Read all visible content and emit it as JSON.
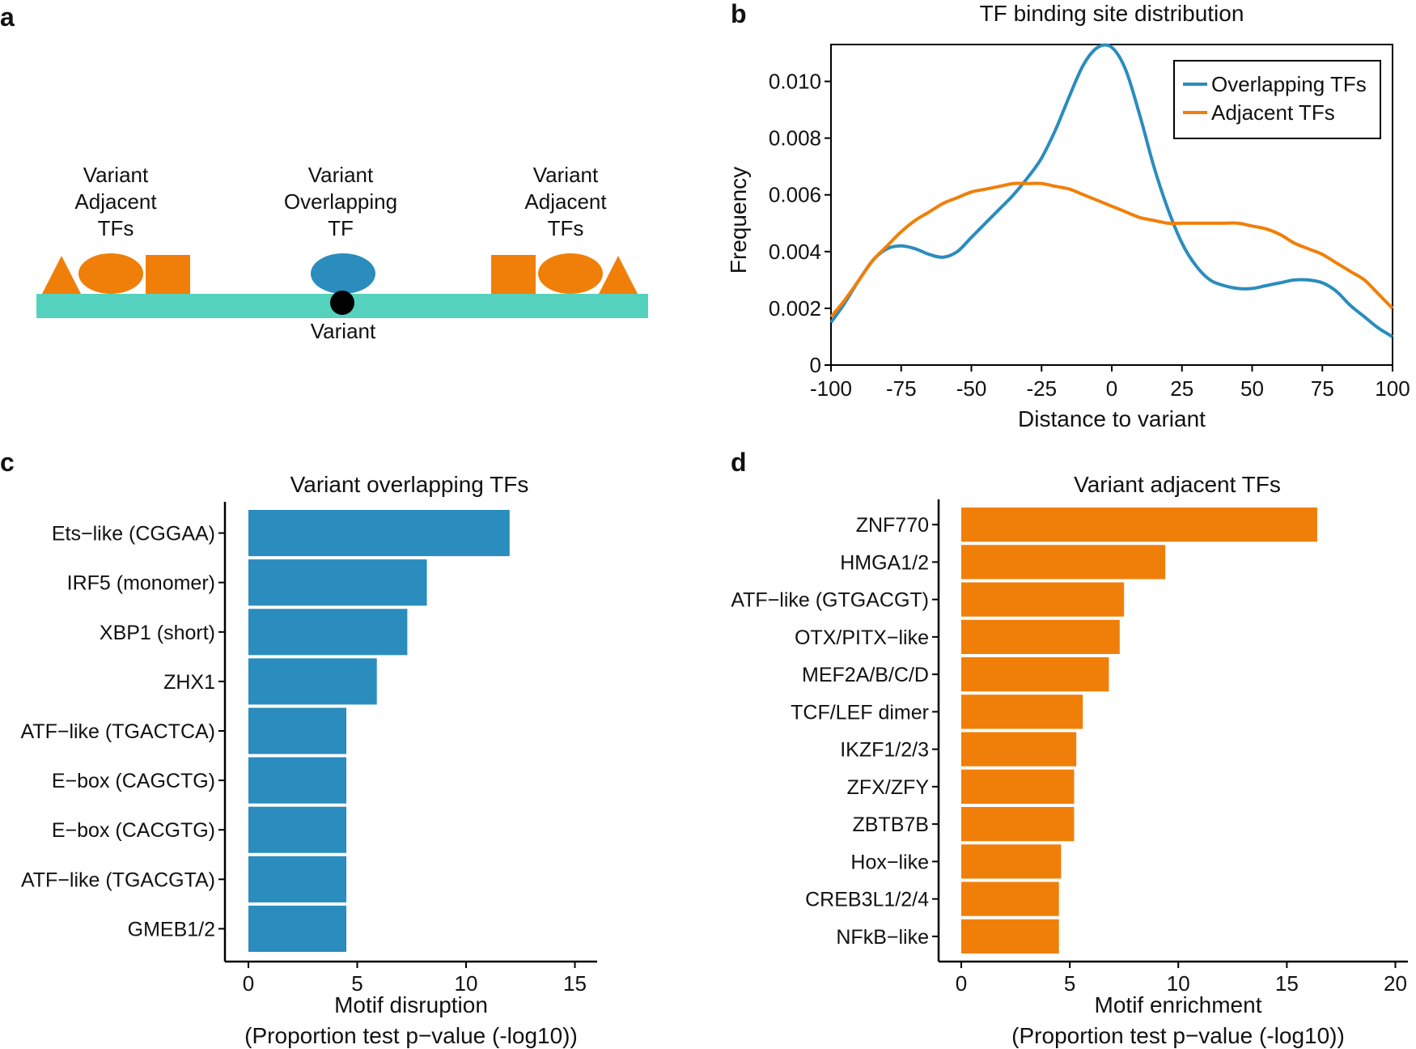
{
  "panels": {
    "a": {
      "letter": "a",
      "left_group": {
        "line1": "Variant",
        "line2": "Adjacent",
        "line3": "TFs"
      },
      "center_group": {
        "line1": "Variant",
        "line2": "Overlapping",
        "line3": "TF"
      },
      "right_group": {
        "line1": "Variant",
        "line2": "Adjacent",
        "line3": "TFs"
      },
      "variant_label": "Variant"
    },
    "b": {
      "letter": "b"
    },
    "c": {
      "letter": "c"
    },
    "d": {
      "letter": "d"
    }
  },
  "colors": {
    "overlapping": "#2b8cbe",
    "adjacent": "#f07f09",
    "dna": "#55d2bd",
    "variant": "#000000",
    "axis": "#000000"
  },
  "chart_data": [
    {
      "id": "b",
      "type": "line",
      "title": "TF binding site distribution",
      "xlabel": "Distance to variant",
      "ylabel": "Frequency",
      "xlim": [
        -100,
        100
      ],
      "ylim": [
        0,
        0.0113
      ],
      "xticks": [
        -100,
        -75,
        -50,
        -25,
        0,
        25,
        50,
        75,
        100
      ],
      "yticks": [
        0,
        0.002,
        0.004,
        0.006,
        0.008,
        0.01
      ],
      "ytick_labels": [
        "0",
        "0.002",
        "0.004",
        "0.006",
        "0.008",
        "0.010"
      ],
      "legend_position": "top-right",
      "series": [
        {
          "name": "Overlapping TFs",
          "color": "#2b8cbe",
          "x": [
            -100,
            -95,
            -90,
            -85,
            -80,
            -75,
            -70,
            -65,
            -60,
            -55,
            -50,
            -45,
            -40,
            -35,
            -30,
            -25,
            -20,
            -15,
            -10,
            -5,
            0,
            5,
            10,
            15,
            20,
            25,
            30,
            35,
            40,
            45,
            50,
            55,
            60,
            65,
            70,
            75,
            80,
            85,
            90,
            95,
            100
          ],
          "y": [
            0.0015,
            0.0022,
            0.003,
            0.0037,
            0.0041,
            0.0042,
            0.0041,
            0.0039,
            0.0038,
            0.004,
            0.0045,
            0.005,
            0.0055,
            0.006,
            0.0066,
            0.0073,
            0.0083,
            0.0095,
            0.0106,
            0.0112,
            0.0112,
            0.0104,
            0.0088,
            0.007,
            0.0055,
            0.0043,
            0.0035,
            0.003,
            0.0028,
            0.0027,
            0.0027,
            0.0028,
            0.0029,
            0.003,
            0.003,
            0.0029,
            0.0026,
            0.0021,
            0.0017,
            0.0013,
            0.001
          ]
        },
        {
          "name": "Adjacent TFs",
          "color": "#f07f09",
          "x": [
            -100,
            -95,
            -90,
            -85,
            -80,
            -75,
            -70,
            -65,
            -60,
            -55,
            -50,
            -45,
            -40,
            -35,
            -30,
            -25,
            -20,
            -15,
            -10,
            -5,
            0,
            5,
            10,
            15,
            20,
            25,
            30,
            35,
            40,
            45,
            50,
            55,
            60,
            65,
            70,
            75,
            80,
            85,
            90,
            95,
            100
          ],
          "y": [
            0.0017,
            0.0023,
            0.003,
            0.0037,
            0.0042,
            0.0047,
            0.0051,
            0.0054,
            0.0057,
            0.0059,
            0.0061,
            0.0062,
            0.0063,
            0.0064,
            0.0064,
            0.0064,
            0.0063,
            0.0062,
            0.006,
            0.0058,
            0.0056,
            0.0054,
            0.0052,
            0.0051,
            0.005,
            0.005,
            0.005,
            0.005,
            0.005,
            0.005,
            0.0049,
            0.0048,
            0.0046,
            0.0043,
            0.0041,
            0.0039,
            0.0036,
            0.0033,
            0.003,
            0.0025,
            0.002
          ]
        }
      ]
    },
    {
      "id": "c",
      "type": "bar",
      "orientation": "horizontal",
      "title": "Variant overlapping TFs",
      "xlabel": "Motif disruption",
      "xlabel2": "(Proportion test p−value (-log10))",
      "xlim": [
        0,
        16
      ],
      "xticks": [
        0,
        5,
        10,
        15
      ],
      "color": "#2b8cbe",
      "categories": [
        "Ets−like (CGGAA)",
        "IRF5 (monomer)",
        "XBP1 (short)",
        "ZHX1",
        "ATF−like (TGACTCA)",
        "E−box (CAGCTG)",
        "E−box (CACGTG)",
        "ATF−like (TGACGTA)",
        "GMEB1/2"
      ],
      "values": [
        12.0,
        8.2,
        7.3,
        5.9,
        4.5,
        4.5,
        4.5,
        4.5,
        4.5
      ]
    },
    {
      "id": "d",
      "type": "bar",
      "orientation": "horizontal",
      "title": "Variant adjacent TFs",
      "xlabel": "Motif enrichment",
      "xlabel2": "(Proportion test p−value (-log10))",
      "xlim": [
        0,
        20.5
      ],
      "xticks": [
        0,
        5,
        10,
        15,
        20
      ],
      "color": "#f07f09",
      "categories": [
        "ZNF770",
        "HMGA1/2",
        "ATF−like (GTGACGT)",
        "OTX/PITX−like",
        "MEF2A/B/C/D",
        "TCF/LEF dimer",
        "IKZF1/2/3",
        "ZFX/ZFY",
        "ZBTB7B",
        "Hox−like",
        "CREB3L1/2/4",
        "NFkB−like"
      ],
      "values": [
        16.4,
        9.4,
        7.5,
        7.3,
        6.8,
        5.6,
        5.3,
        5.2,
        5.2,
        4.6,
        4.5,
        4.5
      ]
    }
  ]
}
